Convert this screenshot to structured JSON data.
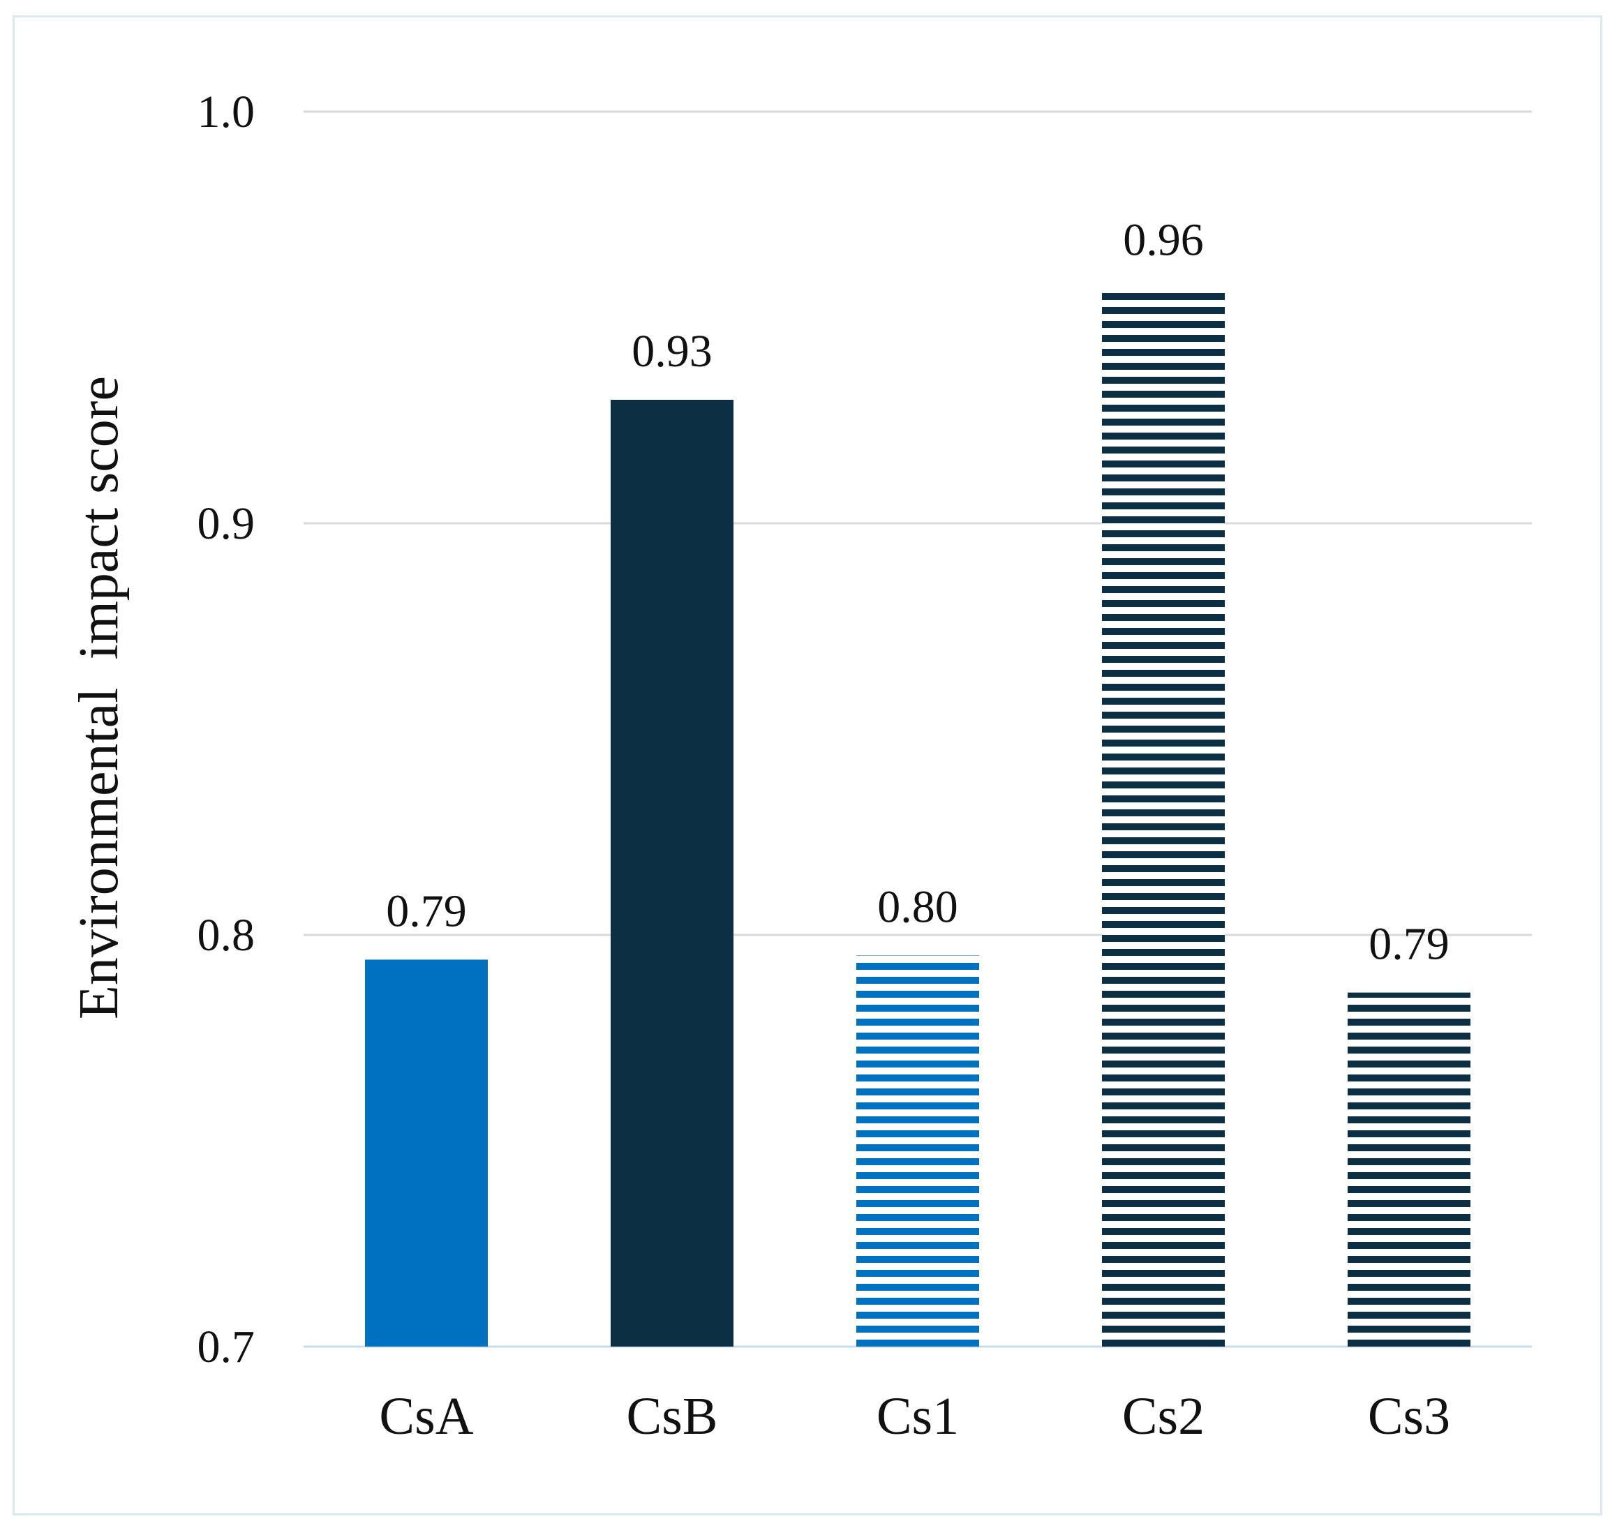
{
  "chart_data": {
    "type": "bar",
    "title": "",
    "xlabel": "",
    "ylabel": "Environmental  impact score",
    "ylim": [
      0.7,
      1.0
    ],
    "yticks": [
      "0.7",
      "0.8",
      "0.9",
      "1.0"
    ],
    "grid": true,
    "categories": [
      "CsA",
      "CsB",
      "Cs1",
      "Cs2",
      "Cs3"
    ],
    "values": [
      0.794,
      0.93,
      0.795,
      0.957,
      0.786
    ],
    "value_labels": [
      "0.79",
      "0.93",
      "0.80",
      "0.96",
      "0.79"
    ],
    "styles": [
      {
        "fill": "solid",
        "color": "#0070c0"
      },
      {
        "fill": "solid",
        "color": "#0c2f43"
      },
      {
        "fill": "horizontal-stripes",
        "color": "#0070c0"
      },
      {
        "fill": "horizontal-stripes",
        "color": "#0c2f43"
      },
      {
        "fill": "horizontal-stripes",
        "color": "#0c2f43"
      }
    ],
    "gridline_color": "#d9d9d9",
    "axis_line_color": "#c9dcef"
  }
}
